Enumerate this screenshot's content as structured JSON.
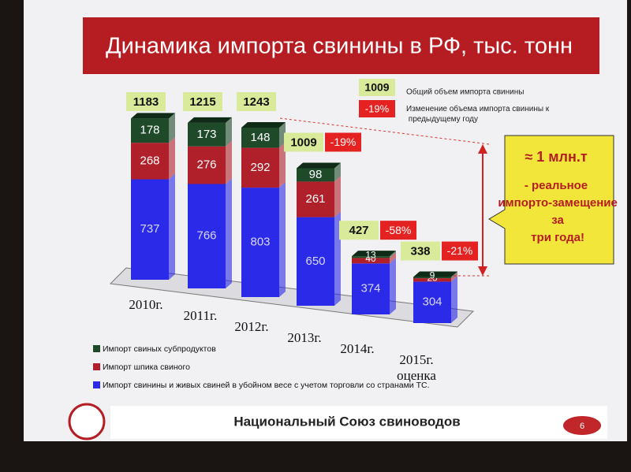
{
  "chart_data": {
    "type": "stacked-bar",
    "title": "Динамика импорта свинины в РФ, тыс. тонн",
    "categories": [
      "2010г.",
      "2011г.",
      "2012г.",
      "2013г.",
      "2014г.",
      "2015г.\nоценка"
    ],
    "series": [
      {
        "name": "Импорт свинины и живых свиней в убойном весе с учетом торговли со странами ТС.",
        "color": "#2a2ae8",
        "values": [
          737,
          766,
          803,
          650,
          374,
          304
        ]
      },
      {
        "name": "Импорт шпика свиного",
        "color": "#b0202a",
        "values": [
          268,
          276,
          292,
          261,
          40,
          25
        ]
      },
      {
        "name": "Импорт свиных субпродуктов",
        "color": "#1f4a2a",
        "values": [
          178,
          173,
          148,
          98,
          13,
          9
        ]
      }
    ],
    "totals": {
      "name": "Общий объем импорта свинины",
      "color": "#d9ea9a",
      "values": [
        1183,
        1215,
        1243,
        1009,
        427,
        338
      ]
    },
    "changes": {
      "name": "Изменение объема импорта свинины к предыдущему году",
      "color": "#e42222",
      "values": [
        null,
        null,
        null,
        -19,
        -58,
        -21
      ],
      "value_labels": [
        null,
        null,
        null,
        "-19%",
        "-58%",
        "-21%"
      ]
    },
    "legend_sample": {
      "total": 1009,
      "change": -19,
      "change_label": "-19%"
    },
    "callout": {
      "headline": "≈ 1 млн.т",
      "text": "- реальное импорто-замещение за три года!"
    },
    "footer": "Национальный Союз свиноводов",
    "page_number": "6"
  }
}
